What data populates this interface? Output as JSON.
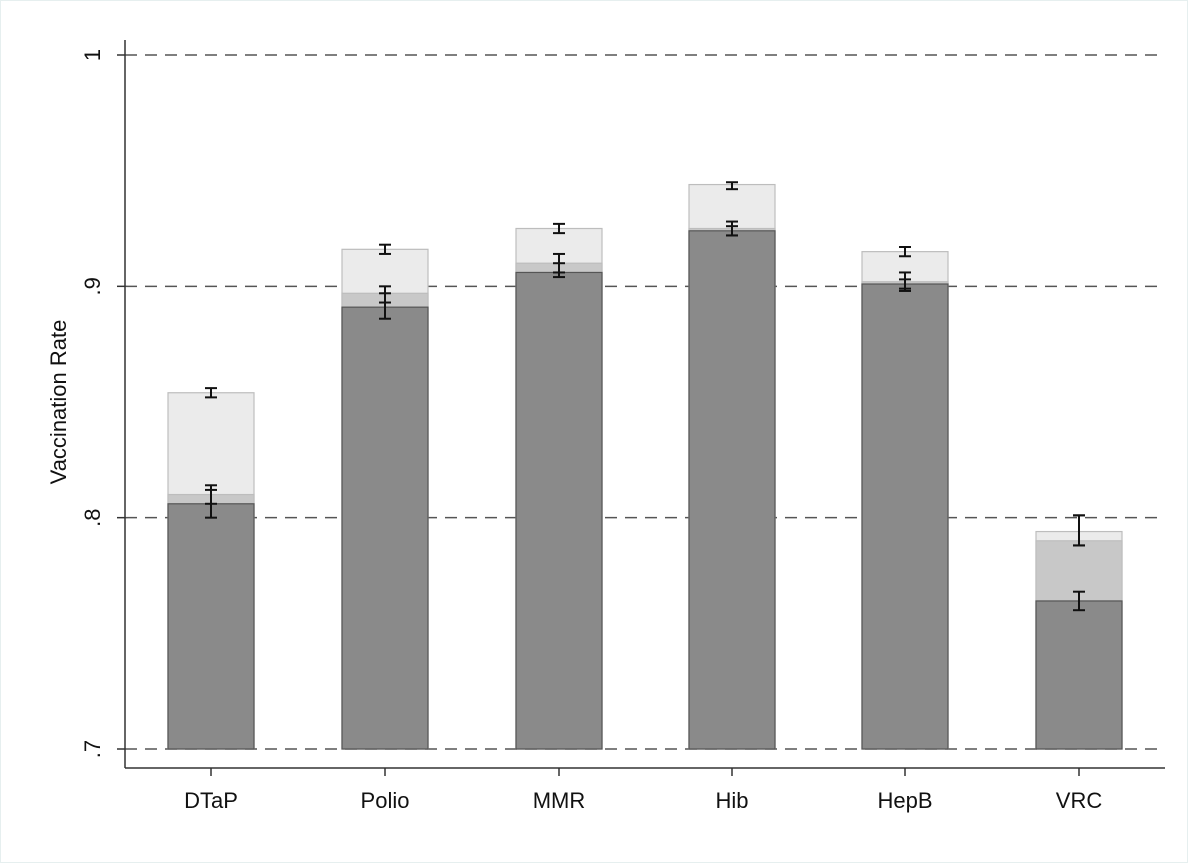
{
  "chart_data": {
    "type": "bar",
    "title": "",
    "xlabel": "",
    "ylabel": "Vaccination Rate",
    "ylim": [
      0.7,
      1.0
    ],
    "yticks": [
      {
        "value": 0.7,
        "label": ".7"
      },
      {
        "value": 0.8,
        "label": ".8"
      },
      {
        "value": 0.9,
        "label": ".9"
      },
      {
        "value": 1.0,
        "label": "1"
      }
    ],
    "grid": "dashed horizontal lines at y ticks",
    "legend": "none",
    "categories": [
      "DTaP",
      "Polio",
      "MMR",
      "Hib",
      "HepB",
      "VRC"
    ],
    "series": [
      {
        "color": "#ebebeb",
        "values": [
          0.854,
          0.916,
          0.925,
          0.944,
          0.915,
          0.794
        ],
        "ci_low": [
          0.852,
          0.914,
          0.923,
          0.942,
          0.913,
          0.788
        ],
        "ci_high": [
          0.856,
          0.918,
          0.927,
          0.945,
          0.917,
          0.801
        ]
      },
      {
        "color": "#c8c8c8",
        "values": [
          0.81,
          0.897,
          0.91,
          0.925,
          0.902,
          0.79
        ],
        "ci_low": [
          0.806,
          0.893,
          0.906,
          0.922,
          0.898,
          0.788
        ],
        "ci_high": [
          0.814,
          0.9,
          0.914,
          0.928,
          0.906,
          0.801
        ]
      },
      {
        "color": "#8a8a8a",
        "values": [
          0.806,
          0.891,
          0.906,
          0.924,
          0.901,
          0.764
        ],
        "ci_low": [
          0.8,
          0.886,
          0.904,
          0.922,
          0.899,
          0.76
        ],
        "ci_high": [
          0.812,
          0.897,
          0.91,
          0.926,
          0.903,
          0.768
        ]
      }
    ]
  }
}
